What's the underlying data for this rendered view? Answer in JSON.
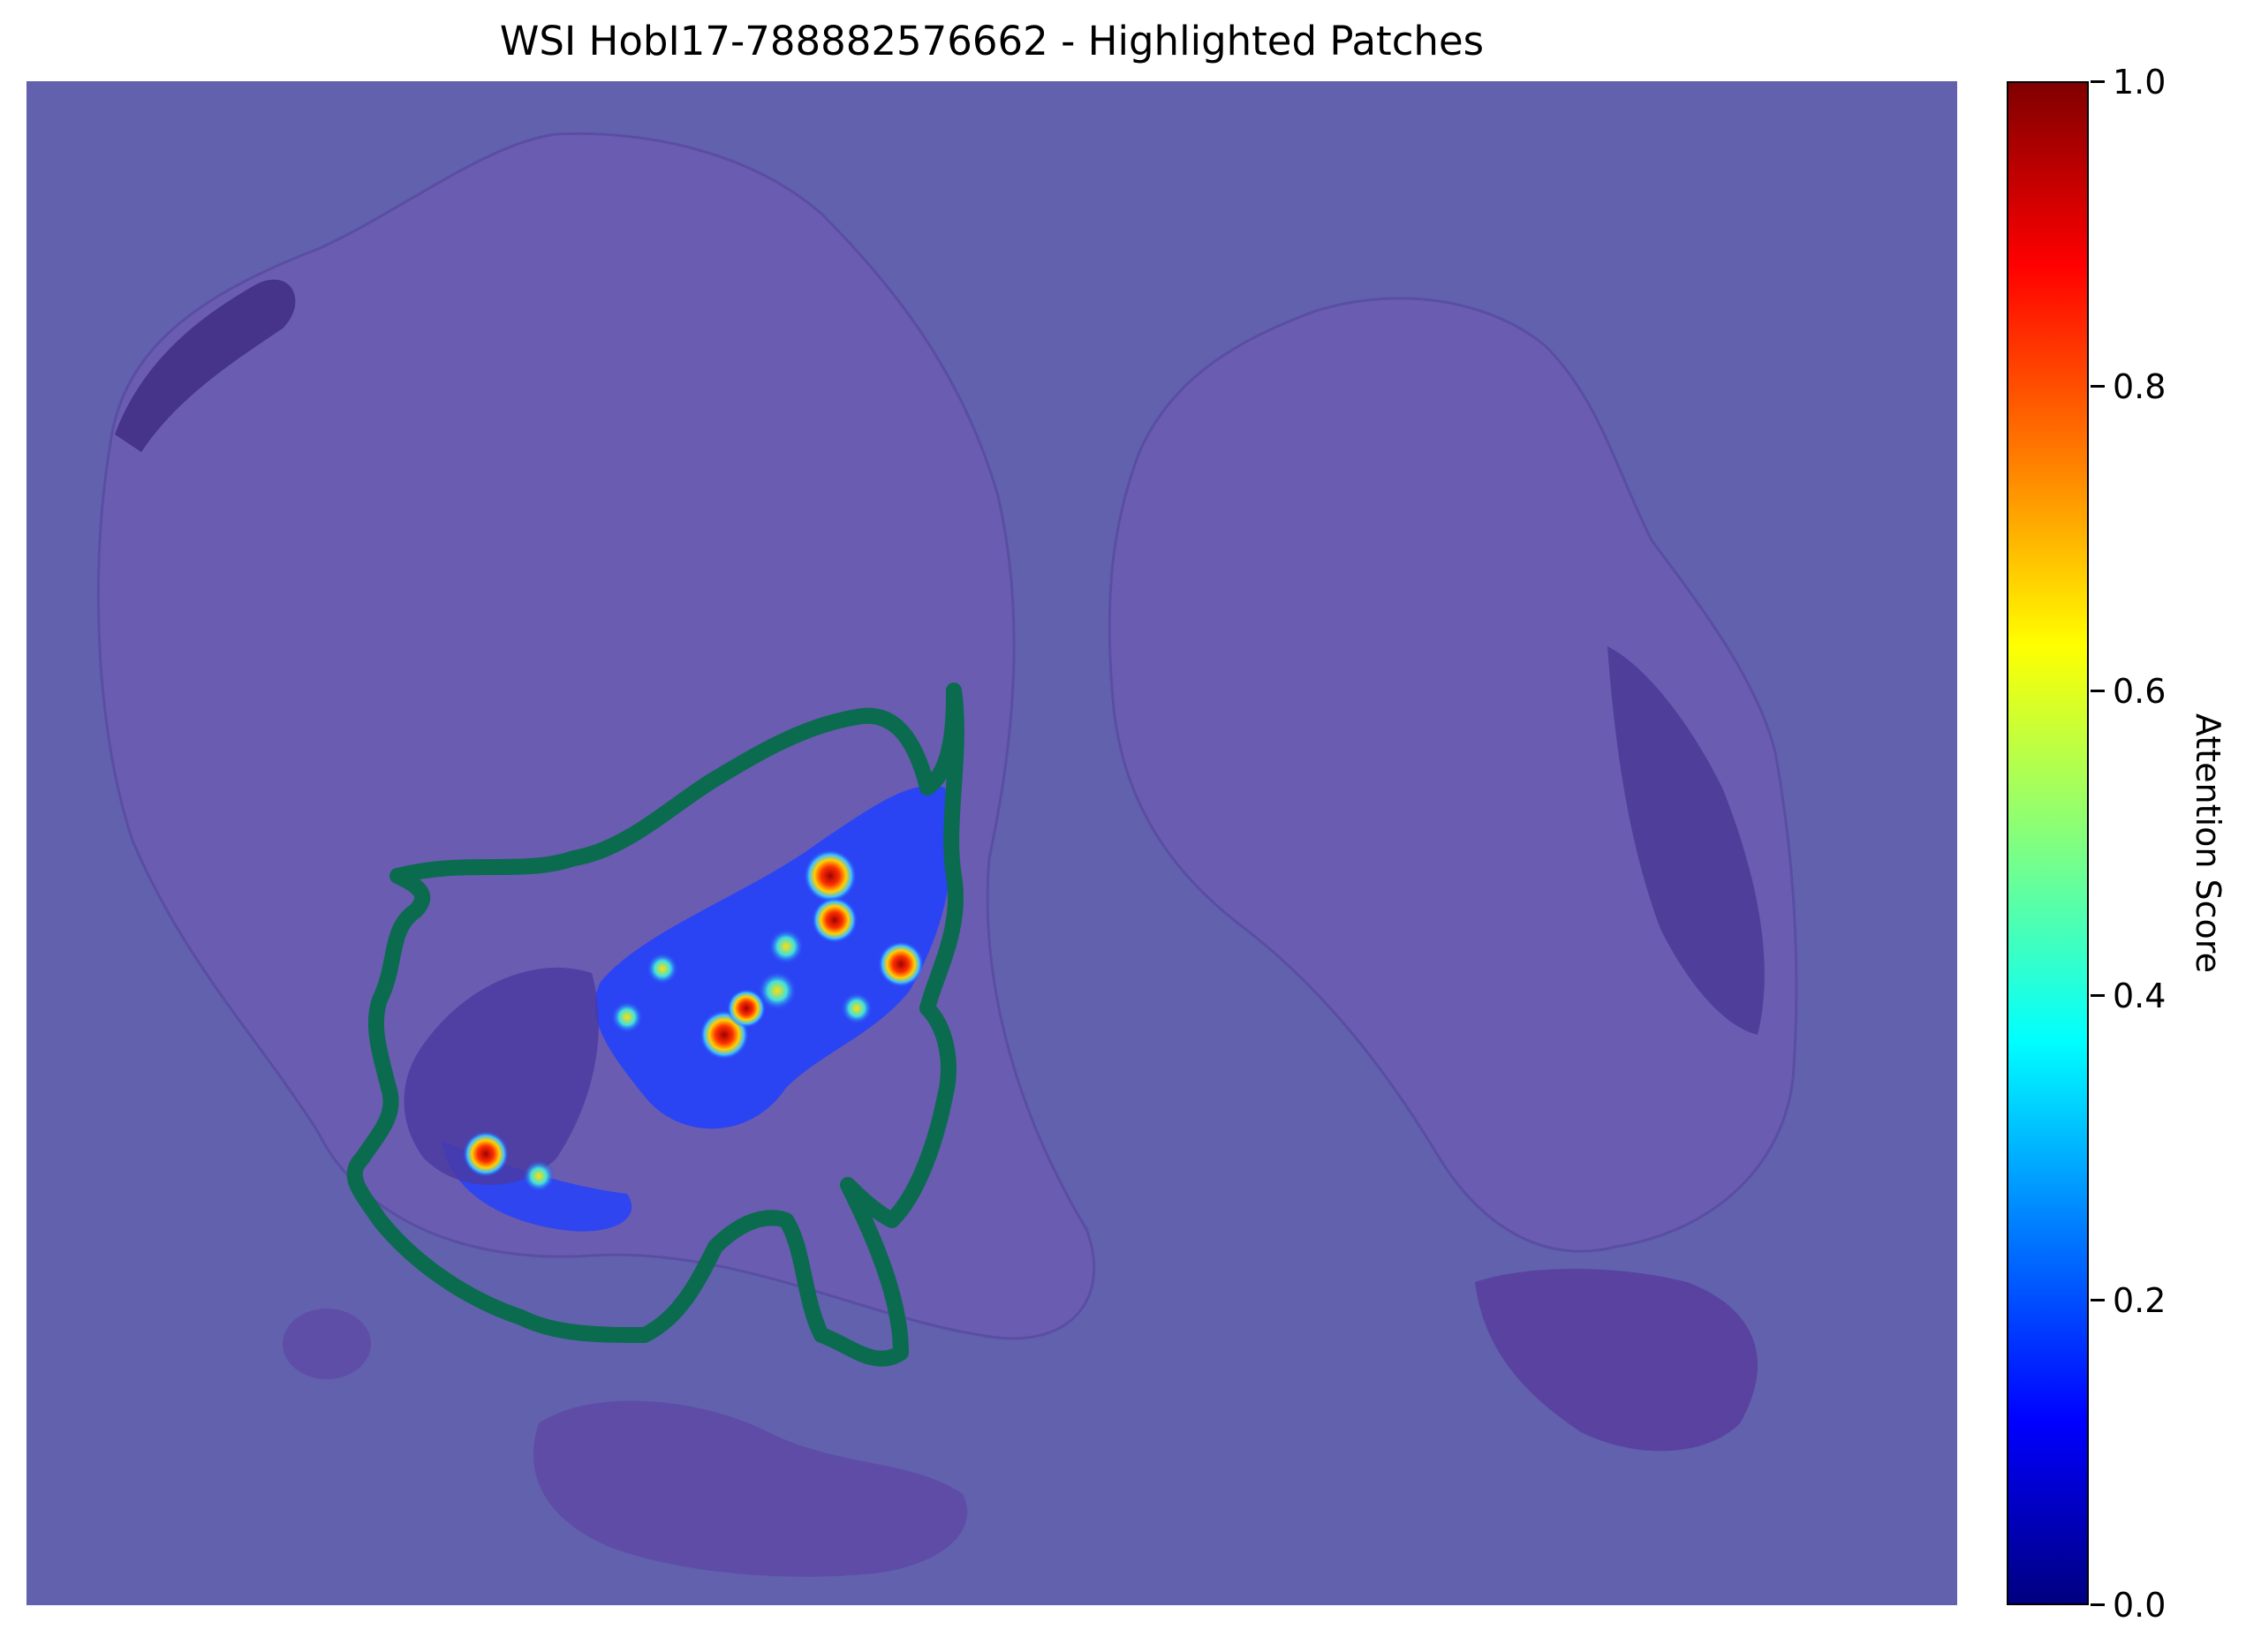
{
  "figure": {
    "title": "WSI HobI17-788882576662 - Highlighted Patches"
  },
  "colorbar": {
    "label": "Attention Score",
    "colormap": "jet",
    "ticks": [
      "0.0",
      "0.2",
      "0.4",
      "0.6",
      "0.8",
      "1.0"
    ],
    "range": [
      0.0,
      1.0
    ]
  },
  "colors": {
    "overlay_background": "#6161ae",
    "tissue": "#7458b0",
    "tissue_dark": "#4a2f8a",
    "highlight_outline": "#0b6b4f"
  }
}
